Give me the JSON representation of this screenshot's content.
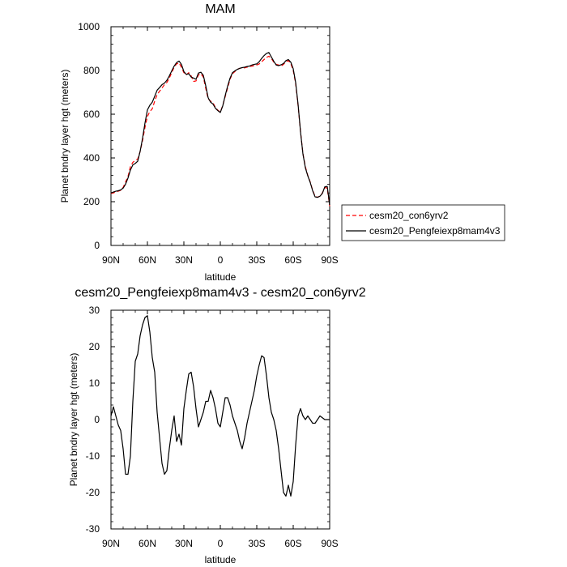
{
  "chart_data": [
    {
      "type": "line",
      "title": "MAM",
      "xlabel": "latitude",
      "ylabel": "Planet bndry layer hgt (meters)",
      "xlim": [
        90,
        -90
      ],
      "ylim": [
        0,
        1000
      ],
      "x_ticks": [
        90,
        60,
        30,
        0,
        -30,
        -60,
        -90
      ],
      "x_tick_labels": [
        "90N",
        "60N",
        "30N",
        "0",
        "30S",
        "60S",
        "90S"
      ],
      "y_ticks": [
        0,
        200,
        400,
        600,
        800,
        1000
      ],
      "y_tick_labels": [
        "0",
        "200",
        "400",
        "600",
        "800",
        "1000"
      ],
      "legend_position": "right",
      "series": [
        {
          "name": "cesm20_con6yrv2",
          "color": "#ff0000",
          "dash": "dashed",
          "x": [
            90,
            88,
            86,
            84,
            82,
            80,
            78,
            76,
            74,
            72,
            70,
            68,
            66,
            64,
            62,
            60,
            58,
            56,
            54,
            52,
            50,
            48,
            46,
            44,
            42,
            40,
            38,
            36,
            34,
            32,
            30,
            28,
            26,
            24,
            22,
            20,
            18,
            16,
            14,
            12,
            10,
            8,
            6,
            4,
            2,
            0,
            -2,
            -4,
            -6,
            -8,
            -10,
            -12,
            -14,
            -16,
            -18,
            -20,
            -22,
            -24,
            -26,
            -28,
            -30,
            -32,
            -34,
            -36,
            -38,
            -40,
            -42,
            -44,
            -46,
            -48,
            -50,
            -52,
            -54,
            -56,
            -58,
            -60,
            -62,
            -64,
            -66,
            -68,
            -70,
            -72,
            -74,
            -76,
            -78,
            -80,
            -82,
            -84,
            -86,
            -88,
            -90
          ],
          "y": [
            238,
            240,
            245,
            248,
            252,
            265,
            290,
            315,
            360,
            380,
            388,
            395,
            430,
            480,
            540,
            590,
            612,
            625,
            660,
            690,
            705,
            720,
            735,
            745,
            765,
            790,
            815,
            830,
            835,
            815,
            790,
            780,
            790,
            775,
            750,
            752,
            780,
            785,
            770,
            718,
            670,
            660,
            652,
            630,
            618,
            610,
            640,
            680,
            720,
            760,
            785,
            795,
            805,
            810,
            812,
            812,
            815,
            818,
            820,
            822,
            825,
            830,
            840,
            850,
            860,
            865,
            855,
            838,
            828,
            825,
            820,
            828,
            840,
            845,
            832,
            800,
            740,
            640,
            520,
            420,
            360,
            320,
            290,
            252,
            225,
            220,
            225,
            240,
            265,
            262,
            180
          ]
        },
        {
          "name": "cesm20_Pengfeiexp8mam4v3",
          "color": "#000000",
          "dash": "solid",
          "x": [
            90,
            88,
            86,
            84,
            82,
            80,
            78,
            76,
            74,
            72,
            70,
            68,
            66,
            64,
            62,
            60,
            58,
            56,
            54,
            52,
            50,
            48,
            46,
            44,
            42,
            40,
            38,
            36,
            34,
            32,
            30,
            28,
            26,
            24,
            22,
            20,
            18,
            16,
            14,
            12,
            10,
            8,
            6,
            4,
            2,
            0,
            -2,
            -4,
            -6,
            -8,
            -10,
            -12,
            -14,
            -16,
            -18,
            -20,
            -22,
            -24,
            -26,
            -28,
            -30,
            -32,
            -34,
            -36,
            -38,
            -40,
            -42,
            -44,
            -46,
            -48,
            -50,
            -52,
            -54,
            -56,
            -58,
            -60,
            -62,
            -64,
            -66,
            -68,
            -70,
            -72,
            -74,
            -76,
            -78,
            -80,
            -82,
            -84,
            -86,
            -88,
            -90
          ],
          "y": [
            240,
            244,
            248,
            250,
            254,
            262,
            280,
            308,
            345,
            368,
            375,
            385,
            430,
            490,
            560,
            620,
            641,
            655,
            682,
            710,
            722,
            735,
            742,
            755,
            775,
            798,
            820,
            836,
            843,
            828,
            795,
            782,
            785,
            770,
            765,
            760,
            788,
            792,
            778,
            730,
            675,
            655,
            646,
            627,
            616,
            608,
            638,
            685,
            728,
            765,
            790,
            798,
            805,
            810,
            813,
            815,
            818,
            820,
            825,
            828,
            830,
            840,
            855,
            868,
            878,
            882,
            862,
            842,
            825,
            822,
            826,
            832,
            845,
            850,
            838,
            808,
            745,
            645,
            520,
            418,
            355,
            318,
            288,
            250,
            222,
            220,
            225,
            238,
            268,
            270,
            185
          ]
        }
      ]
    },
    {
      "type": "line",
      "title": "cesm20_Pengfeiexp8mam4v3 - cesm20_con6yrv2",
      "xlabel": "latitude",
      "ylabel": "Planet bndry layer hgt (meters)",
      "xlim": [
        90,
        -90
      ],
      "ylim": [
        -30,
        30
      ],
      "x_ticks": [
        90,
        60,
        30,
        0,
        -30,
        -60,
        -90
      ],
      "x_tick_labels": [
        "90N",
        "60N",
        "30N",
        "0",
        "30S",
        "60S",
        "90S"
      ],
      "y_ticks": [
        -30,
        -20,
        -10,
        0,
        10,
        20,
        30
      ],
      "y_tick_labels": [
        "-30",
        "-20",
        "-10",
        "0",
        "10",
        "20",
        "30"
      ],
      "series": [
        {
          "color": "#000000",
          "dash": "solid",
          "x": [
            90,
            88,
            86,
            84,
            82,
            80,
            78,
            76,
            74,
            72,
            70,
            68,
            66,
            64,
            62,
            60,
            58,
            56,
            54,
            52,
            50,
            48,
            46,
            44,
            42,
            40,
            38,
            36,
            34,
            32,
            30,
            28,
            26,
            24,
            22,
            20,
            18,
            16,
            14,
            12,
            10,
            8,
            6,
            4,
            2,
            0,
            -2,
            -4,
            -6,
            -8,
            -10,
            -12,
            -14,
            -16,
            -18,
            -20,
            -22,
            -24,
            -26,
            -28,
            -30,
            -32,
            -34,
            -36,
            -38,
            -40,
            -42,
            -44,
            -46,
            -48,
            -50,
            -52,
            -54,
            -56,
            -58,
            -60,
            -62,
            -64,
            -66,
            -68,
            -70,
            -72,
            -74,
            -76,
            -78,
            -80,
            -82,
            -84,
            -86,
            -88,
            -90
          ],
          "y": [
            1,
            3.5,
            1,
            -1.5,
            -3,
            -8,
            -15,
            -15,
            -10,
            5,
            16,
            18,
            23,
            26,
            28,
            28.5,
            24,
            17,
            13,
            2,
            -5,
            -12,
            -15,
            -14,
            -8,
            -3,
            1,
            -6,
            -4,
            -7,
            3,
            8,
            12.5,
            13,
            9,
            3,
            -2,
            0,
            2,
            5,
            5,
            8,
            6,
            3,
            -1,
            -2,
            2,
            6,
            6,
            4,
            1,
            -1,
            -3,
            -6,
            -8,
            -5,
            -1,
            2,
            5,
            8,
            12,
            15,
            17.5,
            17,
            12,
            6,
            2,
            0,
            -3,
            -8,
            -14,
            -20,
            -21,
            -18,
            -21,
            -17,
            -7,
            1,
            3,
            1,
            0,
            1,
            0,
            -1,
            -1,
            0,
            1,
            0.5,
            0,
            0,
            0
          ]
        }
      ]
    }
  ]
}
